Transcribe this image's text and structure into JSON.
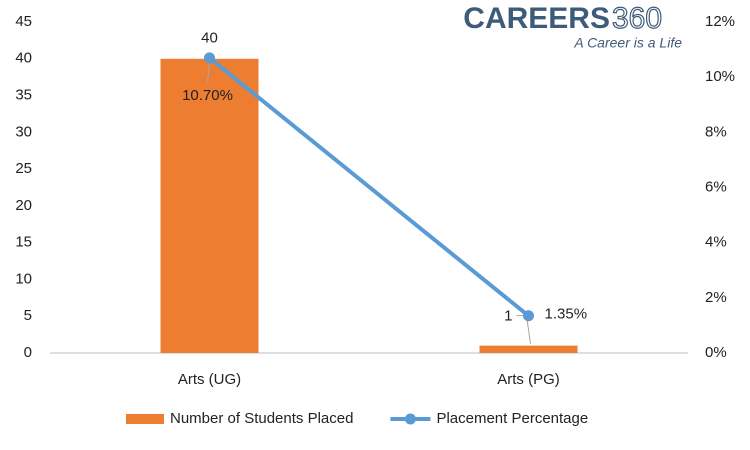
{
  "chart_data": {
    "type": "bar-line",
    "watermark": {
      "brand": "CAREERS",
      "number": "360",
      "tagline": "A Career is a Life"
    },
    "categories": [
      "Arts (UG)",
      "Arts (PG)"
    ],
    "series": [
      {
        "name": "Number of Students Placed",
        "type": "bar",
        "color": "#ed7d31",
        "values": [
          40,
          1
        ]
      },
      {
        "name": "Placement Percentage",
        "type": "line",
        "axis": "y2",
        "color": "#5b9bd5",
        "values": [
          10.7,
          1.35
        ],
        "value_labels": [
          "10.70%",
          "1.35%"
        ]
      }
    ],
    "ylim": [
      0,
      45
    ],
    "yticks": [
      0,
      5,
      10,
      15,
      20,
      25,
      30,
      35,
      40,
      45
    ],
    "y2lim": [
      0,
      12
    ],
    "y2ticks": [
      {
        "value": 0,
        "label": "0%"
      },
      {
        "value": 2,
        "label": "2%"
      },
      {
        "value": 4,
        "label": "4%"
      },
      {
        "value": 6,
        "label": "6%"
      },
      {
        "value": 8,
        "label": "8%"
      },
      {
        "value": 10,
        "label": "10%"
      },
      {
        "value": 12,
        "label": "12%"
      }
    ],
    "grid": false,
    "legend": "bottom"
  }
}
